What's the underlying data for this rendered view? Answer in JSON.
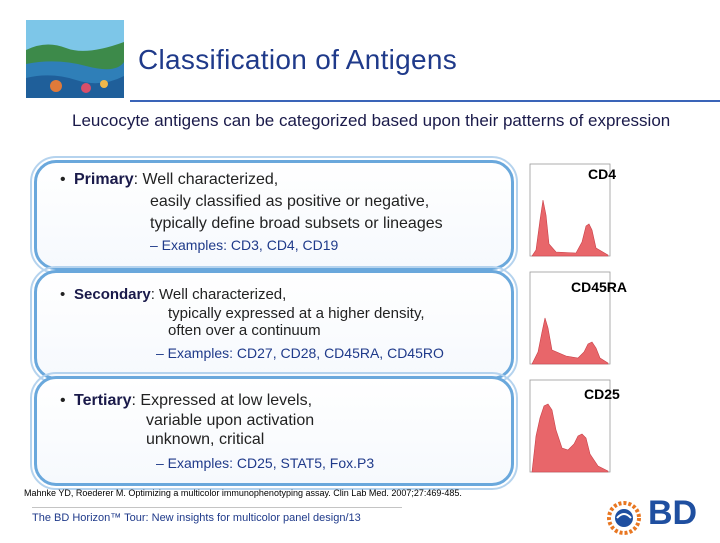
{
  "title": "Classification of Antigens",
  "intro": "Leucocyte antigens can be categorized based upon their patterns of expression",
  "primary": {
    "term": "Primary",
    "line1": ": Well characterized,",
    "line2": "easily classified as positive or negative,",
    "line3": "typically define broad subsets or lineages",
    "examples": "– Examples: CD3, CD4, CD19",
    "hist_label": "CD4"
  },
  "secondary": {
    "term": "Secondary",
    "line1": ": Well characterized,",
    "line2": "typically expressed at a higher density,",
    "line3": "often over a continuum",
    "examples": "– Examples: CD27, CD28, CD45RA, CD45RO",
    "hist_label": "CD45RA"
  },
  "tertiary": {
    "term": "Tertiary",
    "line1": ": Expressed at low levels,",
    "line2": "variable upon activation",
    "line3": "unknown, critical",
    "examples": "– Examples: CD25, STAT5, Fox.P3",
    "hist_label": "CD25"
  },
  "reference": "Mahnke YD, Roederer M. Optimizing a multicolor immunophenotyping assay. Clin Lab Med. 2007;27:469-485.",
  "footer": {
    "text": "The BD Horizon™ Tour: New insights for multicolor panel design",
    "slash": "/",
    "page": "13"
  },
  "brand": {
    "text": "BD",
    "color": "#1f4fa0",
    "accent": "#e87722"
  },
  "colors": {
    "title": "#1f3a8a",
    "panel_border": "#6aa8dc",
    "hist_fill": "#e8666a"
  }
}
